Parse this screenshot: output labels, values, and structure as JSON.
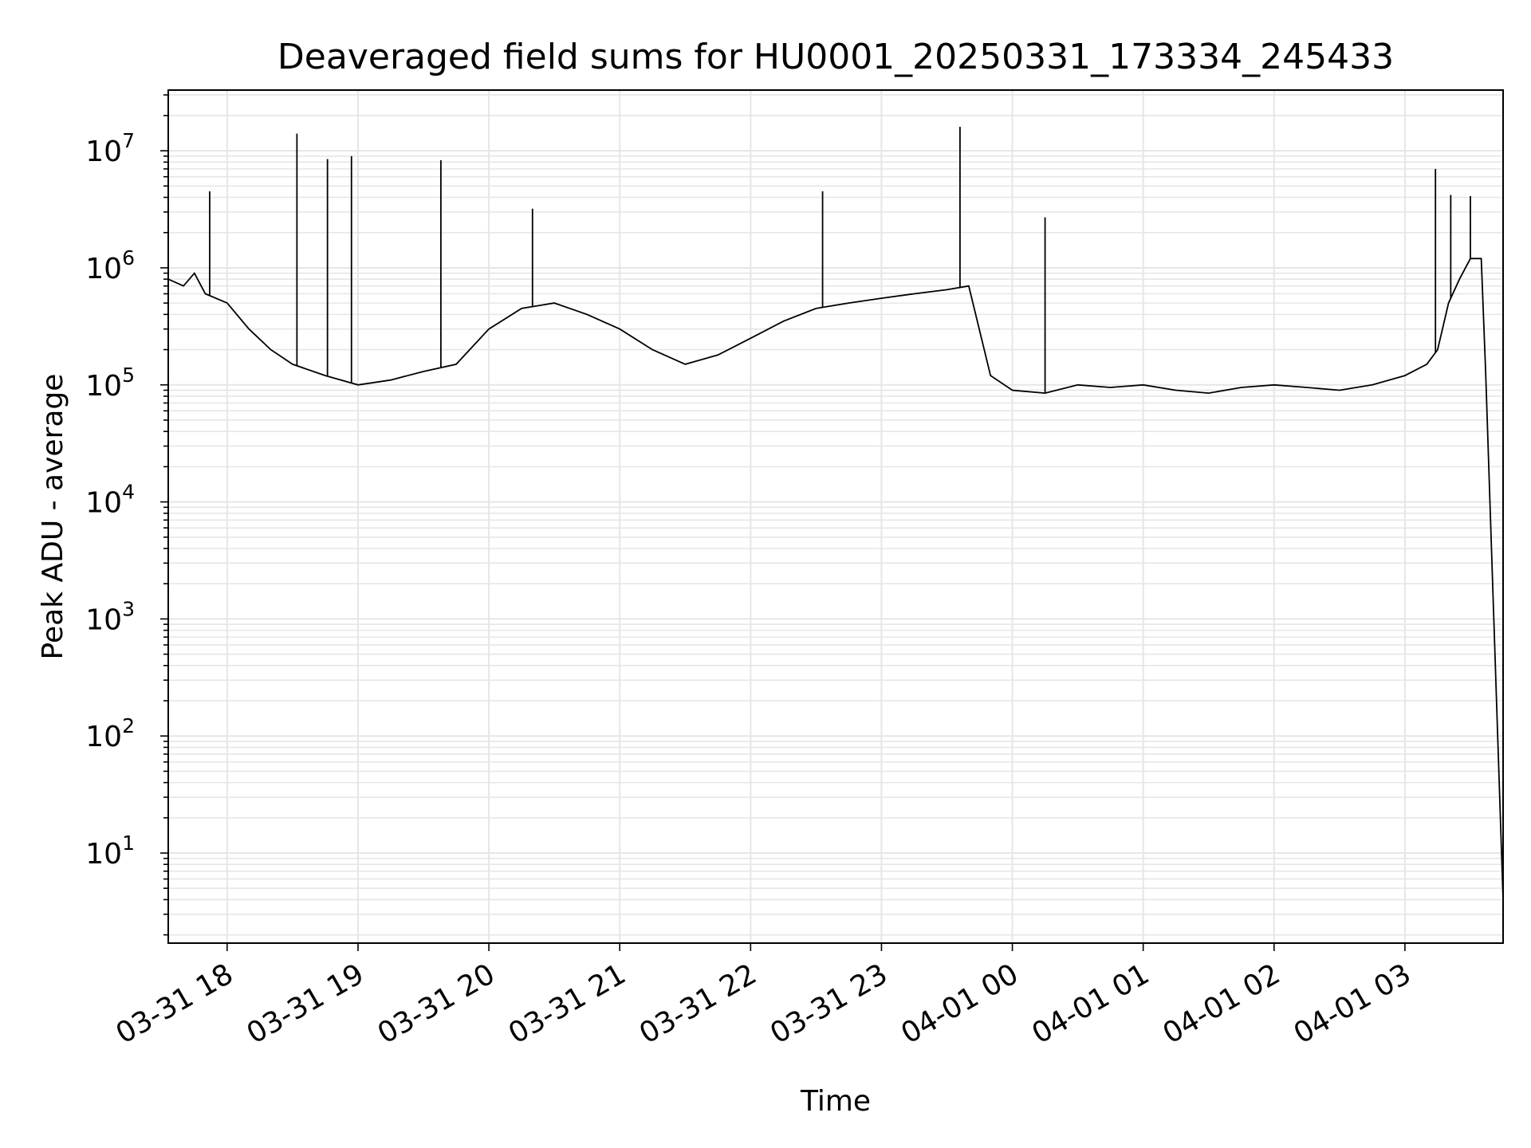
{
  "chart_data": {
    "type": "line",
    "title": "Deaveraged field sums for HU0001_20250331_173334_245433",
    "xlabel": "Time",
    "ylabel": "Peak ADU - average",
    "y_scale": "log",
    "ylim": [
      1.7,
      33000000
    ],
    "xlim": [
      "2025-03-31 17:33",
      "2025-04-01 03:45"
    ],
    "x_ticks": [
      "03-31 18",
      "03-31 19",
      "03-31 20",
      "03-31 21",
      "03-31 22",
      "03-31 23",
      "04-01 00",
      "04-01 01",
      "04-01 02",
      "04-01 03"
    ],
    "y_ticks": [
      {
        "value": 10,
        "base": "10",
        "exp": "1"
      },
      {
        "value": 100,
        "base": "10",
        "exp": "2"
      },
      {
        "value": 1000,
        "base": "10",
        "exp": "3"
      },
      {
        "value": 10000,
        "base": "10",
        "exp": "4"
      },
      {
        "value": 100000,
        "base": "10",
        "exp": "5"
      },
      {
        "value": 1000000,
        "base": "10",
        "exp": "6"
      },
      {
        "value": 10000000,
        "base": "10",
        "exp": "7"
      }
    ],
    "grid": true,
    "line_color": "#000000",
    "series": [
      {
        "x": [
          "2025-03-31 17:33",
          "2025-03-31 17:40",
          "2025-03-31 17:45",
          "2025-03-31 17:50",
          "2025-03-31 18:00",
          "2025-03-31 18:10",
          "2025-03-31 18:20",
          "2025-03-31 18:30",
          "2025-03-31 18:45",
          "2025-03-31 19:00",
          "2025-03-31 19:15",
          "2025-03-31 19:30",
          "2025-03-31 19:45",
          "2025-03-31 20:00",
          "2025-03-31 20:15",
          "2025-03-31 20:30",
          "2025-03-31 20:45",
          "2025-03-31 21:00",
          "2025-03-31 21:15",
          "2025-03-31 21:30",
          "2025-03-31 21:45",
          "2025-03-31 22:00",
          "2025-03-31 22:15",
          "2025-03-31 22:30",
          "2025-03-31 22:45",
          "2025-03-31 23:00",
          "2025-03-31 23:15",
          "2025-03-31 23:30",
          "2025-03-31 23:40",
          "2025-03-31 23:50",
          "2025-04-01 00:00",
          "2025-04-01 00:15",
          "2025-04-01 00:30",
          "2025-04-01 00:45",
          "2025-04-01 01:00",
          "2025-04-01 01:15",
          "2025-04-01 01:30",
          "2025-04-01 01:45",
          "2025-04-01 02:00",
          "2025-04-01 02:15",
          "2025-04-01 02:30",
          "2025-04-01 02:45",
          "2025-04-01 03:00",
          "2025-04-01 03:10",
          "2025-04-01 03:15",
          "2025-04-01 03:20",
          "2025-04-01 03:25",
          "2025-04-01 03:30",
          "2025-04-01 03:35",
          "2025-04-01 03:37",
          "2025-04-01 03:45"
        ],
        "y": [
          800000,
          700000,
          900000,
          600000,
          500000,
          300000,
          200000,
          150000,
          120000,
          100000,
          110000,
          130000,
          150000,
          300000,
          450000,
          500000,
          400000,
          300000,
          200000,
          150000,
          180000,
          250000,
          350000,
          450000,
          500000,
          550000,
          600000,
          650000,
          700000,
          120000,
          90000,
          85000,
          100000,
          95000,
          100000,
          90000,
          85000,
          95000,
          100000,
          95000,
          90000,
          100000,
          120000,
          150000,
          200000,
          500000,
          800000,
          1200000,
          1200000,
          130000,
          4
        ]
      }
    ],
    "spikes": [
      {
        "x": "2025-03-31 17:52",
        "y": 4500000
      },
      {
        "x": "2025-03-31 18:32",
        "y": 14000000
      },
      {
        "x": "2025-03-31 18:46",
        "y": 8500000
      },
      {
        "x": "2025-03-31 18:57",
        "y": 9000000
      },
      {
        "x": "2025-03-31 19:38",
        "y": 8300000
      },
      {
        "x": "2025-03-31 20:20",
        "y": 3200000
      },
      {
        "x": "2025-03-31 22:33",
        "y": 4500000
      },
      {
        "x": "2025-03-31 23:36",
        "y": 16000000
      },
      {
        "x": "2025-04-01 00:15",
        "y": 2700000
      },
      {
        "x": "2025-04-01 03:14",
        "y": 7000000
      },
      {
        "x": "2025-04-01 03:21",
        "y": 4200000
      },
      {
        "x": "2025-04-01 03:30",
        "y": 4100000
      }
    ]
  }
}
